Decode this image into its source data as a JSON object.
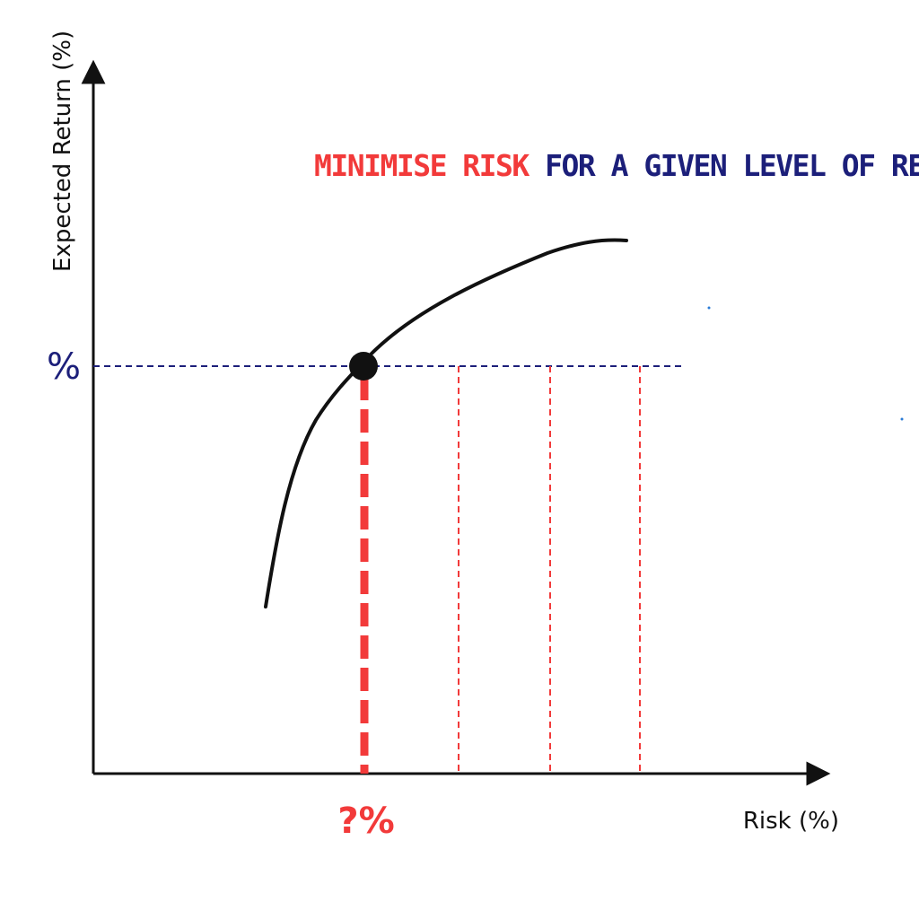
{
  "axes": {
    "y_label": "Expected Return (%)",
    "x_label": "Risk (%)"
  },
  "headline": {
    "highlight": "MINIMISE RISK",
    "rest": " FOR A GIVEN LEVEL OF RETURN",
    "end_mark": "."
  },
  "markers": {
    "return_label": "%",
    "risk_label": "?%"
  },
  "colors": {
    "red": "#f23a3a",
    "navy": "#1c1f7a",
    "black": "#111111"
  }
}
